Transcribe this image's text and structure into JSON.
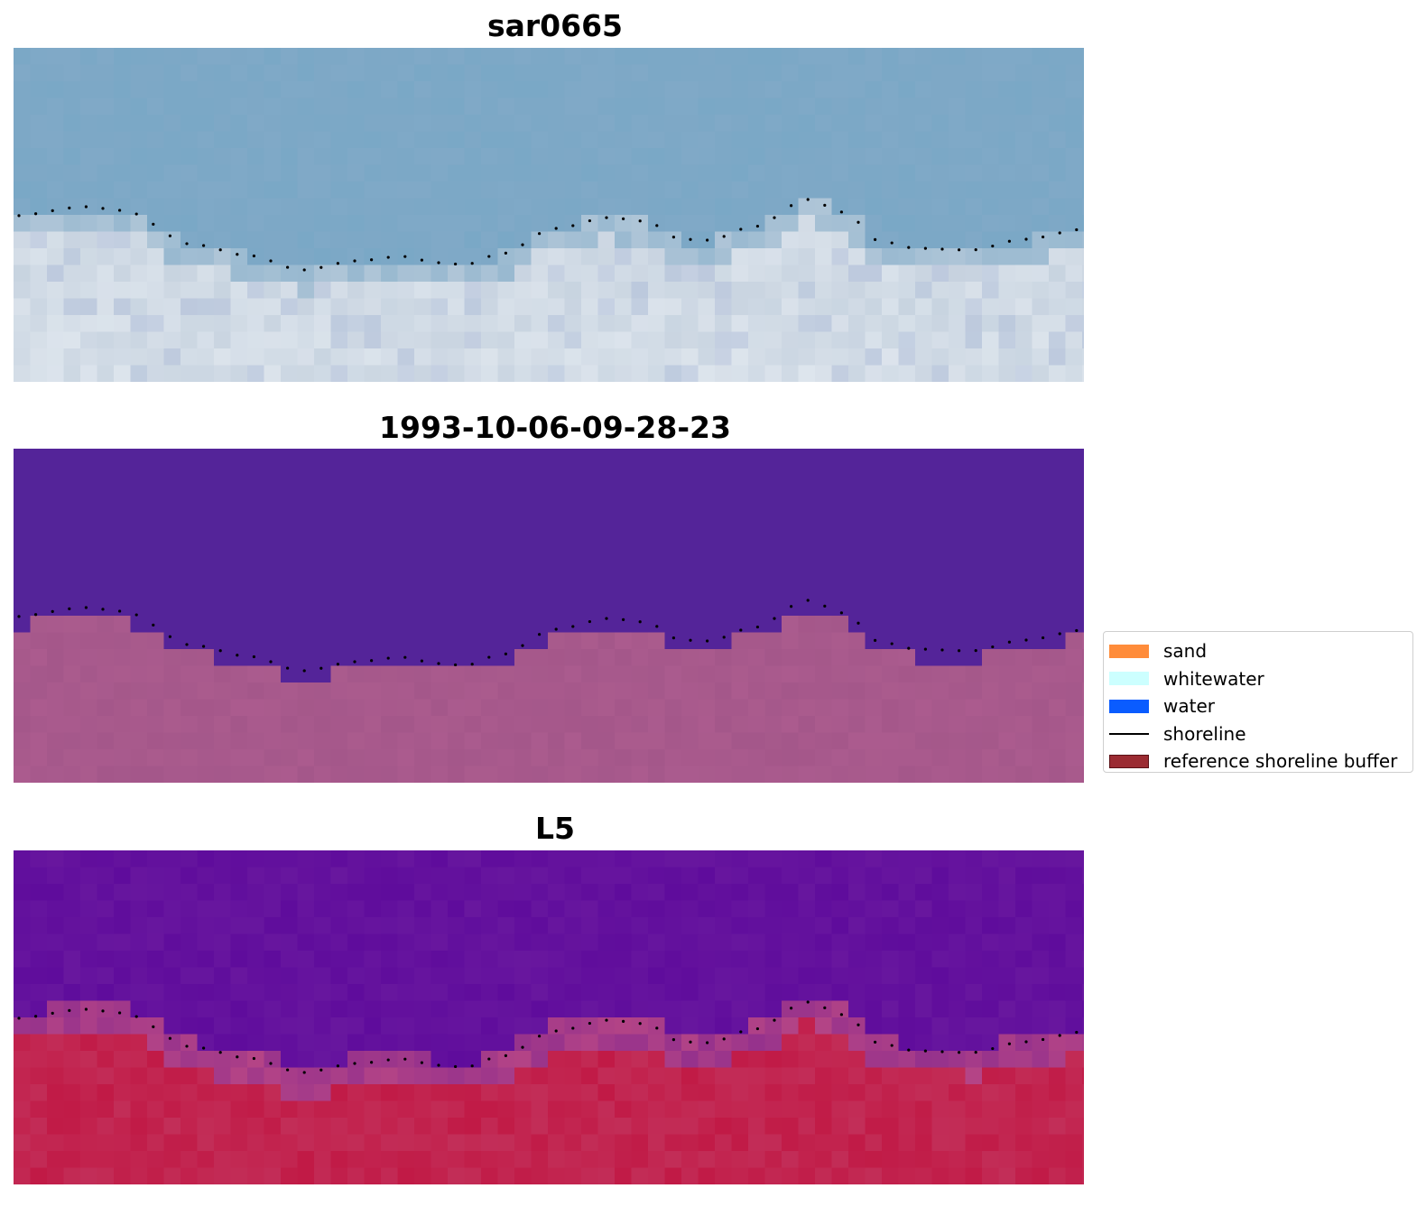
{
  "panels": [
    {
      "title": "sar0665",
      "style": "rgb"
    },
    {
      "title": "1993-10-06-09-28-23",
      "style": "classified"
    },
    {
      "title": "L5",
      "style": "index"
    }
  ],
  "legend": {
    "items": [
      {
        "label": "sand",
        "color": "#ff8c3a",
        "kind": "patch"
      },
      {
        "label": "whitewater",
        "color": "#ccffff",
        "kind": "patch"
      },
      {
        "label": "water",
        "color": "#0a5cff",
        "kind": "patch"
      },
      {
        "label": "shoreline",
        "color": "#000000",
        "kind": "line"
      },
      {
        "label": "reference shoreline buffer",
        "color": "#9b2b32",
        "kind": "patch"
      }
    ]
  },
  "colors": {
    "water_rgb": "#7aa8c6",
    "sand_rgb": "#c6d2df",
    "water_class": "#542499",
    "buffer_class": "#a4578a",
    "water_index": "#5f0c9c",
    "land_index": "#c11a46"
  }
}
